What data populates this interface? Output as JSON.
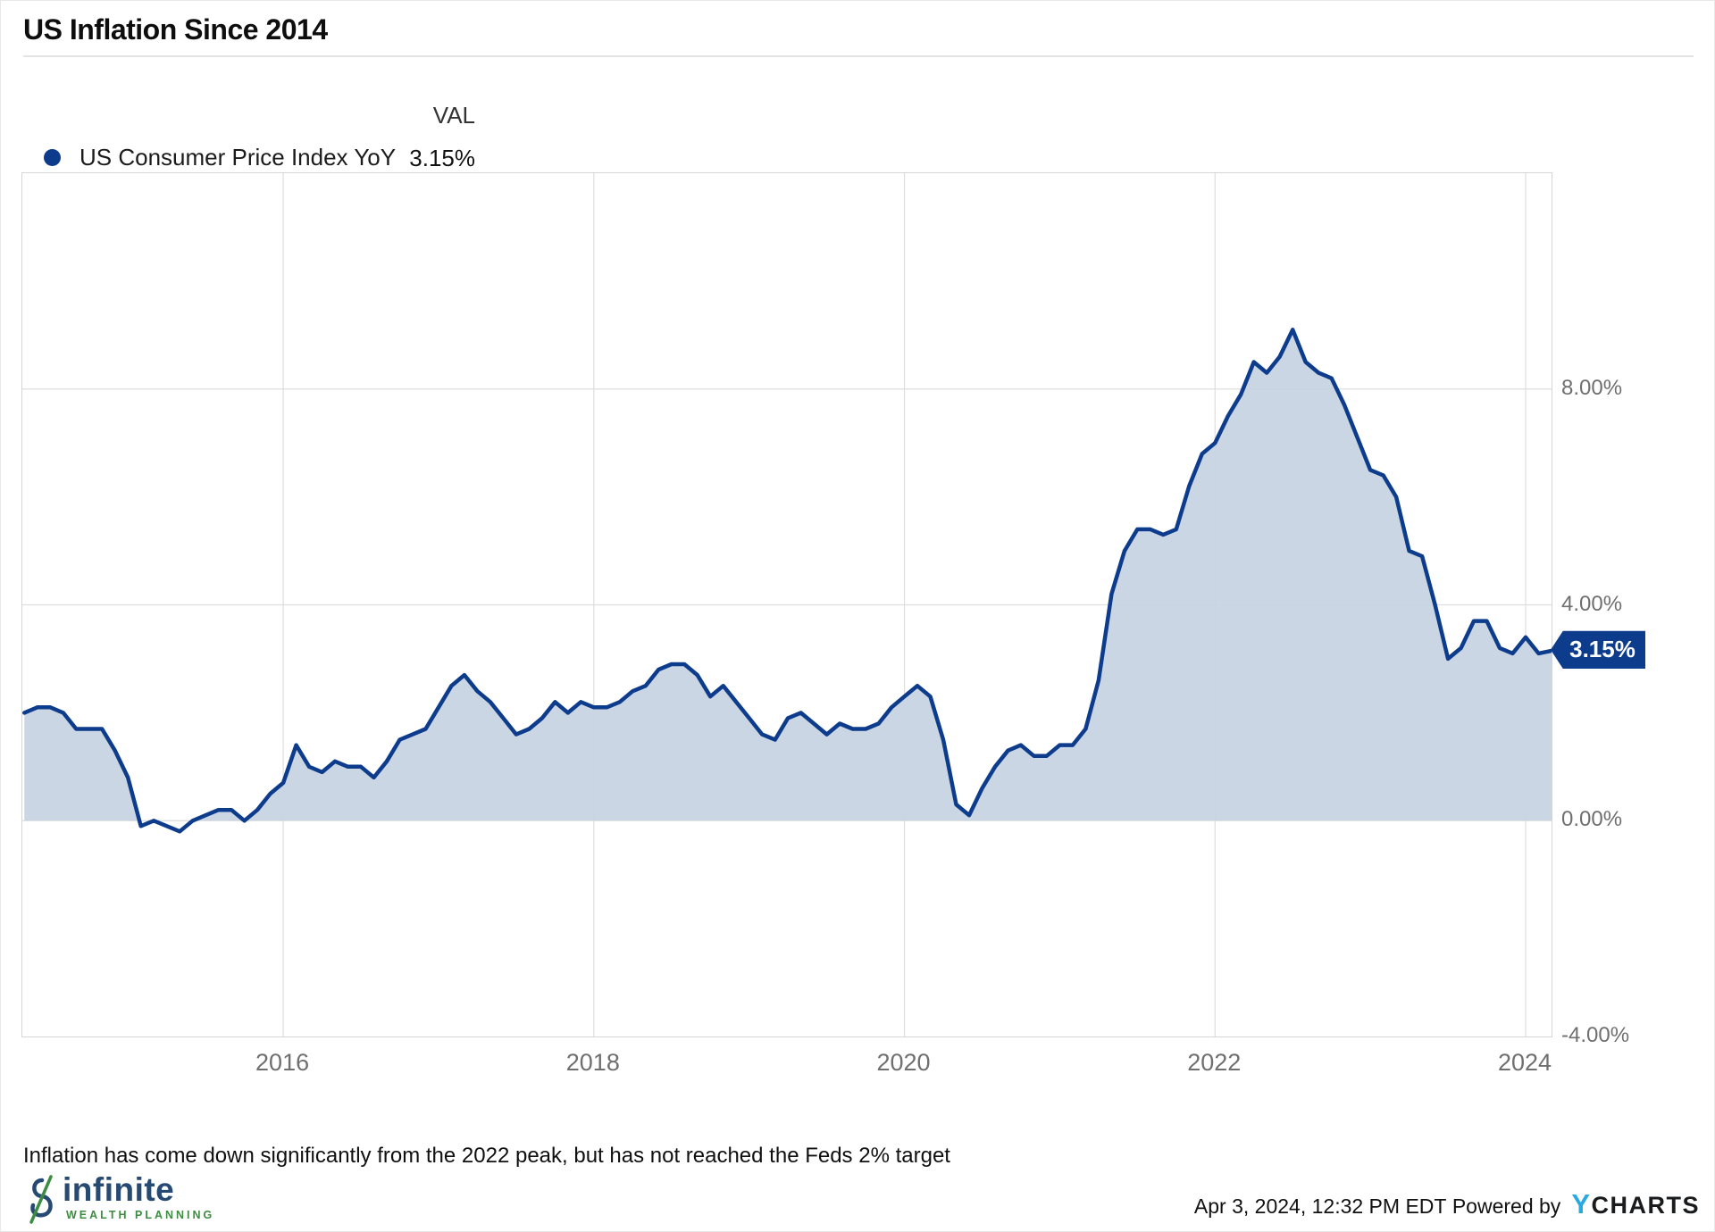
{
  "title": "US Inflation Since 2014",
  "legend": {
    "val_header": "VAL",
    "series_label": "US Consumer Price Index YoY",
    "val": "3.15%",
    "dot_color": "#0d3c8c"
  },
  "chart_data": {
    "type": "area",
    "title": "US Inflation Since 2014",
    "xlabel": "",
    "ylabel": "US Consumer Price Index YoY (%)",
    "xlim": [
      2014.32,
      2024.1668
    ],
    "ylim": [
      -4,
      12
    ],
    "grid": true,
    "x_ticks": [
      "2016",
      "2018",
      "2020",
      "2022",
      "2024"
    ],
    "x_tick_values": [
      2016,
      2018,
      2020,
      2022,
      2024
    ],
    "y_ticks": [
      {
        "label": "8.00%",
        "value": 8
      },
      {
        "label": "4.00%",
        "value": 4
      },
      {
        "label": "0.00%",
        "value": 0
      },
      {
        "label": "-4.00%",
        "value": -4
      }
    ],
    "series": [
      {
        "name": "US Consumer Price Index YoY",
        "frequency": "monthly",
        "start_year": 2014,
        "start_month": 4,
        "end_label": "Feb 2024",
        "line_color": "#0d3c8c",
        "fill_color": "#c7d2e3",
        "values": [
          2.0,
          2.1,
          2.1,
          2.0,
          1.7,
          1.7,
          1.7,
          1.3,
          0.8,
          -0.1,
          0.0,
          -0.1,
          -0.2,
          0.0,
          0.1,
          0.2,
          0.2,
          0.0,
          0.2,
          0.5,
          0.7,
          1.4,
          1.0,
          0.9,
          1.1,
          1.0,
          1.0,
          0.8,
          1.1,
          1.5,
          1.6,
          1.7,
          2.1,
          2.5,
          2.7,
          2.4,
          2.2,
          1.9,
          1.6,
          1.7,
          1.9,
          2.2,
          2.0,
          2.2,
          2.1,
          2.1,
          2.2,
          2.4,
          2.5,
          2.8,
          2.9,
          2.9,
          2.7,
          2.3,
          2.5,
          2.2,
          1.9,
          1.6,
          1.5,
          1.9,
          2.0,
          1.8,
          1.6,
          1.8,
          1.7,
          1.7,
          1.8,
          2.1,
          2.3,
          2.5,
          2.3,
          1.5,
          0.3,
          0.1,
          0.6,
          1.0,
          1.3,
          1.4,
          1.2,
          1.2,
          1.4,
          1.4,
          1.7,
          2.6,
          4.2,
          5.0,
          5.4,
          5.4,
          5.3,
          5.4,
          6.2,
          6.8,
          7.0,
          7.5,
          7.9,
          8.5,
          8.3,
          8.6,
          9.1,
          8.5,
          8.3,
          8.2,
          7.7,
          7.1,
          6.5,
          6.4,
          6.0,
          5.0,
          4.9,
          4.0,
          3.0,
          3.2,
          3.7,
          3.7,
          3.2,
          3.1,
          3.4,
          3.1,
          3.15
        ]
      }
    ],
    "badge": {
      "label": "3.15%",
      "value": 3.15,
      "bg": "#0d3c8c"
    },
    "legend_position": "top-left"
  },
  "footnote": "Inflation has come down significantly from the 2022 peak, but has not reached the Feds 2% target",
  "brand": {
    "name": "infinite",
    "subtitle": "WEALTH PLANNING",
    "name_color": "#274a72",
    "accent_color": "#3d8c42"
  },
  "footer": {
    "timestamp": "Apr 3, 2024, 12:32 PM EDT",
    "powered_by": "Powered by",
    "brand_y": "Y",
    "brand_rest": "CHARTS",
    "brand_y_color": "#2aa9e1"
  }
}
